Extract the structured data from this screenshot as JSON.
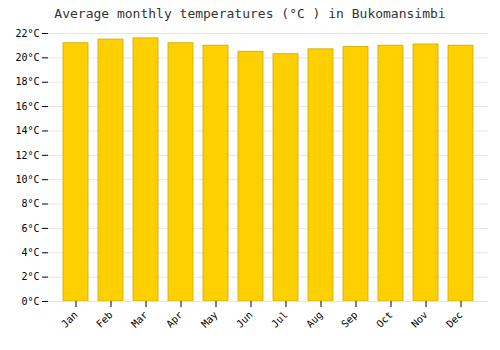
{
  "chart_data": {
    "type": "bar",
    "title": "Average monthly temperatures (°C ) in Bukomansimbi",
    "categories": [
      "Jan",
      "Feb",
      "Mar",
      "Apr",
      "May",
      "Jun",
      "Jul",
      "Aug",
      "Sep",
      "Oct",
      "Nov",
      "Dec"
    ],
    "values": [
      21.2,
      21.5,
      21.6,
      21.2,
      21.0,
      20.5,
      20.3,
      20.7,
      20.9,
      21.0,
      21.1,
      21.0
    ],
    "color": "#FFD000",
    "ylim": [
      0,
      22
    ],
    "yticks": [
      {
        "value": 0,
        "label": "0°C"
      },
      {
        "value": 2,
        "label": "2°C"
      },
      {
        "value": 4,
        "label": "4°C"
      },
      {
        "value": 6,
        "label": "6°C"
      },
      {
        "value": 8,
        "label": "8°C"
      },
      {
        "value": 10,
        "label": "10°C"
      },
      {
        "value": 12,
        "label": "12°C"
      },
      {
        "value": 14,
        "label": "14°C"
      },
      {
        "value": 16,
        "label": "16°C"
      },
      {
        "value": 18,
        "label": "18°C"
      },
      {
        "value": 20,
        "label": "20°C"
      },
      {
        "value": 22,
        "label": "22°C"
      }
    ],
    "grid": true
  }
}
